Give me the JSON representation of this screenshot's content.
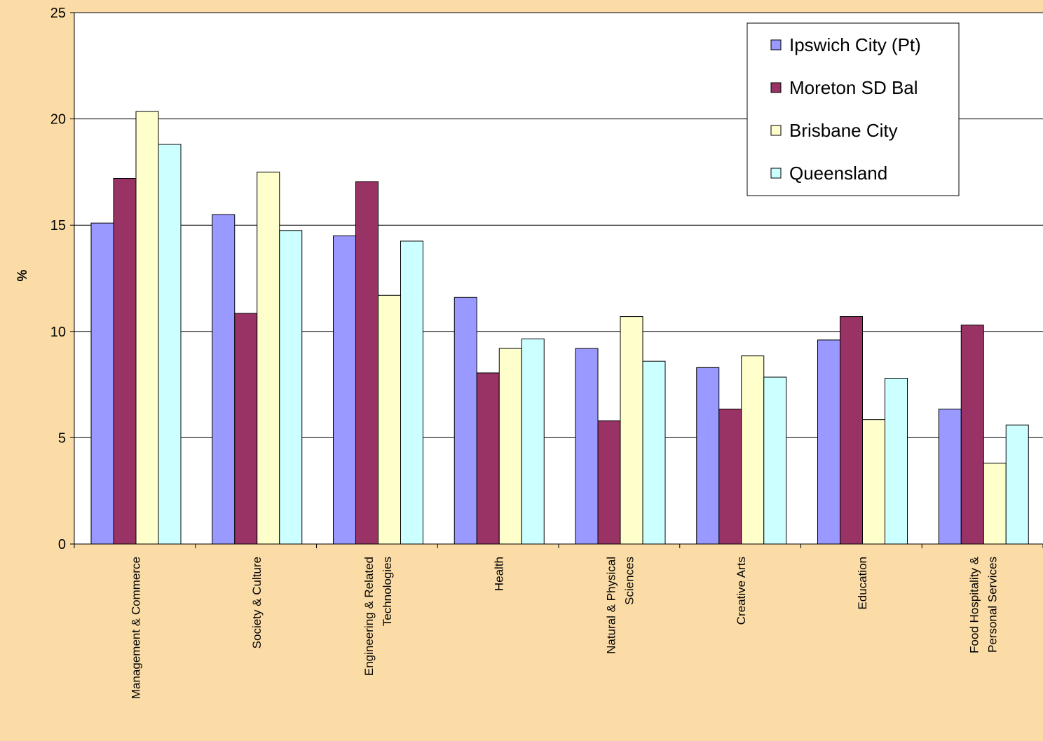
{
  "chart_data": {
    "type": "bar",
    "title": "",
    "xlabel": "",
    "ylabel": "%",
    "ylim": [
      0,
      25
    ],
    "yticks": [
      "0",
      "5",
      "10",
      "15",
      "20",
      "25"
    ],
    "grid": true,
    "legend_position": "top-right",
    "categories": [
      [
        "Management & Commerce"
      ],
      [
        "Society & Culture"
      ],
      [
        "Engineering & Related",
        "Technologies"
      ],
      [
        "Health"
      ],
      [
        "Natural & Physical",
        "Sciences"
      ],
      [
        "Creative Arts"
      ],
      [
        "Education"
      ],
      [
        "Food Hospitality &",
        "Personal Services"
      ]
    ],
    "series": [
      {
        "name": "Ipswich City (Pt)",
        "color": "#9999FF",
        "values": [
          15.1,
          15.5,
          14.5,
          11.6,
          9.2,
          8.3,
          9.6,
          6.35
        ]
      },
      {
        "name": "Moreton SD Bal",
        "color": "#993366",
        "values": [
          17.2,
          10.85,
          17.05,
          8.05,
          5.8,
          6.35,
          10.7,
          10.3
        ]
      },
      {
        "name": "Brisbane City",
        "color": "#FFFFCC",
        "values": [
          20.35,
          17.5,
          11.7,
          9.2,
          10.7,
          8.85,
          5.85,
          3.8
        ]
      },
      {
        "name": "Queensland",
        "color": "#CCFFFF",
        "values": [
          18.8,
          14.75,
          14.25,
          9.65,
          8.6,
          7.85,
          7.8,
          5.6
        ]
      }
    ]
  }
}
